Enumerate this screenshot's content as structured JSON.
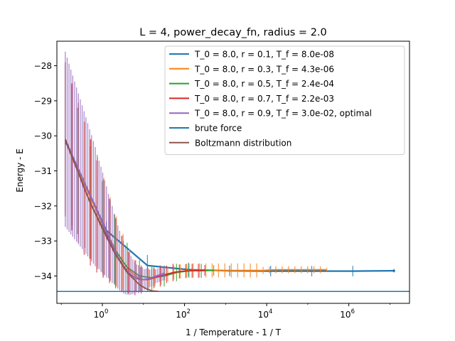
{
  "chart_data": {
    "type": "line",
    "title": "L = 4, power_decay_fn, radius = 2.0",
    "xlabel": "1 / Temperature - 1 / T",
    "ylabel": "Energy - E",
    "xscale": "log",
    "xlim": [
      0.078,
      30000000
    ],
    "ylim": [
      -34.78,
      -27.3
    ],
    "yticks": [
      -34,
      -33,
      -32,
      -31,
      -30,
      -29,
      -28
    ],
    "ytick_labels": [
      "−34",
      "−33",
      "−32",
      "−31",
      "−30",
      "−29",
      "−28"
    ],
    "xticks": [
      {
        "base": "10",
        "exp": "0"
      },
      {
        "base": "10",
        "exp": "2"
      },
      {
        "base": "10",
        "exp": "4"
      },
      {
        "base": "10",
        "exp": "6"
      }
    ],
    "grid": false,
    "legend_position": "top-right",
    "series": [
      {
        "name": "T_0 = 8.0, r = 0.1, T_f = 8.0e-08",
        "color": "#1f77b4",
        "x": [
          0.125,
          1.25,
          12.5,
          125,
          1250,
          12500,
          125000,
          1250000,
          12500000
        ],
        "y": [
          -30.15,
          -32.7,
          -33.7,
          -33.82,
          -33.85,
          -33.86,
          -33.86,
          -33.86,
          -33.85
        ],
        "yerr": [
          0.3,
          0.25,
          0.3,
          0.2,
          0.15,
          0.15,
          0.15,
          0.15,
          0.05
        ]
      },
      {
        "name": "T_0 = 8.0, r = 0.3, T_f = 4.3e-06",
        "color": "#ff7f0e",
        "x": [
          0.125,
          0.18,
          0.26,
          0.37,
          0.53,
          0.76,
          1.09,
          1.55,
          2.2,
          3.2,
          4.6,
          6.5,
          9.3,
          13.3,
          19,
          27,
          39,
          55,
          79,
          113,
          162,
          231,
          330,
          471,
          673,
          961,
          1373,
          1962,
          2803,
          4005,
          5721,
          8173,
          11676,
          16680,
          23829,
          34041,
          48630,
          69472,
          99246,
          141780,
          202543,
          289347
        ],
        "y": [
          -30.1,
          -30.55,
          -31.0,
          -31.4,
          -31.8,
          -32.2,
          -32.6,
          -32.95,
          -33.3,
          -33.6,
          -33.85,
          -34.0,
          -34.1,
          -34.1,
          -34.05,
          -34.0,
          -33.95,
          -33.9,
          -33.87,
          -33.85,
          -33.84,
          -33.84,
          -33.84,
          -33.84,
          -33.84,
          -33.84,
          -33.84,
          -33.84,
          -33.84,
          -33.84,
          -33.84,
          -33.84,
          -33.83,
          -33.82,
          -33.82,
          -33.82,
          -33.82,
          -33.82,
          -33.82,
          -33.82,
          -33.82,
          -33.82
        ],
        "yerr": [
          2.1,
          2.0,
          1.9,
          1.8,
          1.7,
          1.6,
          1.4,
          1.2,
          1.0,
          0.8,
          0.6,
          0.45,
          0.35,
          0.3,
          0.25,
          0.25,
          0.2,
          0.2,
          0.2,
          0.2,
          0.2,
          0.2,
          0.2,
          0.2,
          0.2,
          0.2,
          0.2,
          0.2,
          0.2,
          0.2,
          0.2,
          0.1,
          0.1,
          0.1,
          0.1,
          0.1,
          0.1,
          0.1,
          0.1,
          0.1,
          0.1,
          0.05
        ]
      },
      {
        "name": "T_0 = 8.0, r = 0.5, T_f = 2.4e-04",
        "color": "#2ca02c",
        "x": [
          0.125,
          0.25,
          0.5,
          1,
          2,
          4,
          8,
          16,
          32,
          64,
          128,
          256,
          512
        ],
        "y": [
          -30.1,
          -31.0,
          -31.9,
          -32.6,
          -33.25,
          -33.75,
          -34.0,
          -34.05,
          -34.0,
          -33.9,
          -33.85,
          -33.85,
          -33.84
        ],
        "yerr": [
          2.2,
          1.8,
          1.6,
          1.3,
          1.0,
          0.7,
          0.45,
          0.35,
          0.3,
          0.25,
          0.2,
          0.2,
          0.15
        ]
      },
      {
        "name": "T_0 = 8.0, r = 0.7, T_f = 2.2e-03",
        "color": "#d62728",
        "x": [
          0.125,
          0.18,
          0.26,
          0.36,
          0.51,
          0.73,
          1.04,
          1.49,
          2.1,
          3.0,
          4.3,
          6.2,
          8.8,
          12.6,
          18,
          25.7,
          36.7,
          52.4,
          74.9,
          107,
          153,
          218,
          312
        ],
        "y": [
          -30.1,
          -30.6,
          -31.05,
          -31.5,
          -31.9,
          -32.3,
          -32.65,
          -33.0,
          -33.35,
          -33.65,
          -33.9,
          -34.05,
          -34.1,
          -34.1,
          -34.05,
          -34.0,
          -33.95,
          -33.9,
          -33.87,
          -33.86,
          -33.85,
          -33.85,
          -33.84
        ],
        "yerr": [
          2.2,
          2.1,
          2.0,
          1.9,
          1.8,
          1.6,
          1.4,
          1.2,
          1.0,
          0.8,
          0.6,
          0.5,
          0.4,
          0.35,
          0.3,
          0.3,
          0.25,
          0.25,
          0.2,
          0.2,
          0.2,
          0.2,
          0.15
        ]
      },
      {
        "name": "T_0 = 8.0, r = 0.9, T_f = 3.0e-02, optimal",
        "color": "#9467bd",
        "x": [
          0.125,
          0.139,
          0.154,
          0.171,
          0.19,
          0.211,
          0.235,
          0.261,
          0.29,
          0.322,
          0.358,
          0.397,
          0.441,
          0.49,
          0.545,
          0.605,
          0.672,
          0.747,
          0.83,
          0.922,
          1.02,
          1.14,
          1.26,
          1.41,
          1.56,
          1.73,
          1.93,
          2.14,
          2.38,
          2.64,
          2.94,
          3.26,
          3.62,
          4.03,
          4.47,
          4.97,
          5.52,
          6.13,
          6.81,
          7.57,
          8.41,
          9.34,
          10.4,
          11.5,
          12.8,
          14.2,
          15.8,
          17.6,
          19.5,
          21.7,
          24.1,
          26.8,
          29.7,
          33.0
        ],
        "y": [
          -30.1,
          -30.22,
          -30.34,
          -30.46,
          -30.58,
          -30.7,
          -30.82,
          -30.94,
          -31.06,
          -31.18,
          -31.3,
          -31.42,
          -31.54,
          -31.66,
          -31.78,
          -31.9,
          -32.02,
          -32.14,
          -32.26,
          -32.38,
          -32.5,
          -32.62,
          -32.74,
          -32.86,
          -32.98,
          -33.1,
          -33.22,
          -33.34,
          -33.46,
          -33.56,
          -33.66,
          -33.74,
          -33.82,
          -33.88,
          -33.94,
          -33.98,
          -34.02,
          -34.05,
          -34.07,
          -34.09,
          -34.1,
          -34.1,
          -34.1,
          -34.09,
          -34.08,
          -34.07,
          -34.05,
          -34.03,
          -34.01,
          -33.99,
          -33.97,
          -33.95,
          -33.93,
          -33.92
        ],
        "yerr": [
          2.5,
          2.45,
          2.4,
          2.35,
          2.3,
          2.25,
          2.2,
          2.15,
          2.1,
          2.05,
          2.0,
          1.95,
          1.9,
          1.85,
          1.8,
          1.75,
          1.7,
          1.6,
          1.55,
          1.5,
          1.45,
          1.35,
          1.3,
          1.2,
          1.15,
          1.1,
          1.0,
          0.95,
          0.9,
          0.85,
          0.8,
          0.75,
          0.7,
          0.65,
          0.6,
          0.55,
          0.5,
          0.45,
          0.4,
          0.4,
          0.35,
          0.35,
          0.3,
          0.3,
          0.3,
          0.25,
          0.25,
          0.25,
          0.2,
          0.2,
          0.2,
          0.2,
          0.2,
          0.2
        ]
      },
      {
        "name": "brute force",
        "color": "#1f77b4",
        "type": "hline",
        "y": -34.44
      },
      {
        "name": "Boltzmann distribution",
        "color": "#8c564b",
        "x": [
          0.125,
          0.25,
          0.5,
          1,
          2,
          4,
          8,
          12,
          16,
          24
        ],
        "y": [
          -30.1,
          -31.0,
          -31.9,
          -32.65,
          -33.35,
          -33.9,
          -34.25,
          -34.37,
          -34.42,
          -34.44
        ]
      }
    ]
  }
}
